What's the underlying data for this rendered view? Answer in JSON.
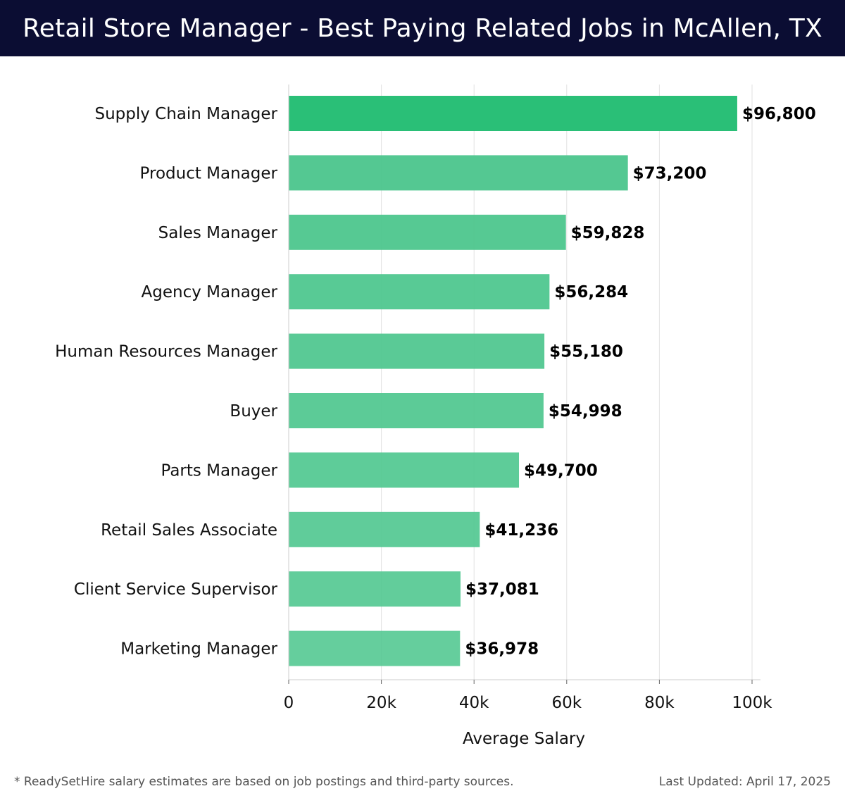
{
  "header": {
    "title": "Retail Store Manager - Best Paying Related Jobs in McAllen, TX"
  },
  "chart_data": {
    "type": "bar",
    "orientation": "horizontal",
    "title": "Retail Store Manager - Best Paying Related Jobs in McAllen, TX",
    "xlabel": "Average Salary",
    "ylabel": "",
    "xlim": [
      0,
      100000
    ],
    "xticks": [
      0,
      20000,
      40000,
      60000,
      80000,
      100000
    ],
    "xtick_labels": [
      "0",
      "20k",
      "40k",
      "60k",
      "80k",
      "100k"
    ],
    "grid": "vertical",
    "categories": [
      "Supply Chain Manager",
      "Product Manager",
      "Sales Manager",
      "Agency Manager",
      "Human Resources Manager",
      "Buyer",
      "Parts Manager",
      "Retail Sales Associate",
      "Client Service Supervisor",
      "Marketing Manager"
    ],
    "values": [
      96800,
      73200,
      59828,
      56284,
      55180,
      54998,
      49700,
      41236,
      37081,
      36978
    ],
    "value_labels": [
      "$96,800",
      "$73,200",
      "$59,828",
      "$56,284",
      "$55,180",
      "$54,998",
      "$49,700",
      "$41,236",
      "$37,081",
      "$36,978"
    ],
    "colors": {
      "top_bar": "#2abf77",
      "bar": "#4cc68d",
      "grid": "#e2e2e2",
      "axis": "#cccccc"
    }
  },
  "footer": {
    "note": "* ReadySetHire salary estimates are based on job postings and third-party sources.",
    "updated": "Last Updated: April 17, 2025"
  }
}
